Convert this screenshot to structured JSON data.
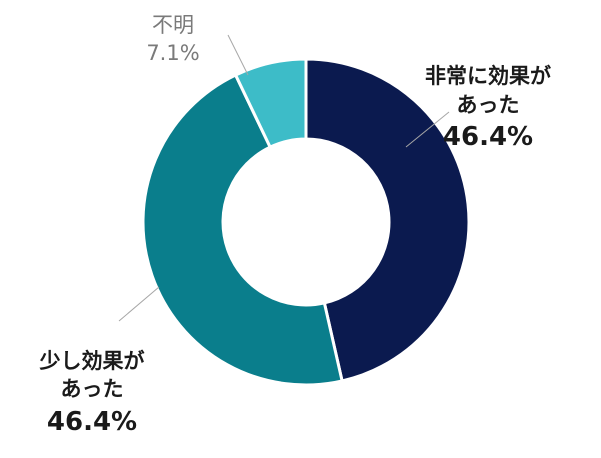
{
  "chart_data": {
    "type": "pie",
    "style": "donut",
    "title": "",
    "slices": [
      {
        "label_lines": [
          "非常に効果が",
          "あった"
        ],
        "value": 46.4,
        "value_label": "46.4%",
        "color": "#0b1a4f"
      },
      {
        "label_lines": [
          "少し効果が",
          "あった"
        ],
        "value": 46.4,
        "value_label": "46.4%",
        "color": "#0a7e8c"
      },
      {
        "label_lines": [
          "不明"
        ],
        "value": 7.1,
        "value_label": "7.1%",
        "color": "#3dbcc8"
      }
    ],
    "start_angle_deg": 0,
    "direction": "clockwise",
    "legend": "none",
    "slice_border_color": "#ffffff"
  }
}
